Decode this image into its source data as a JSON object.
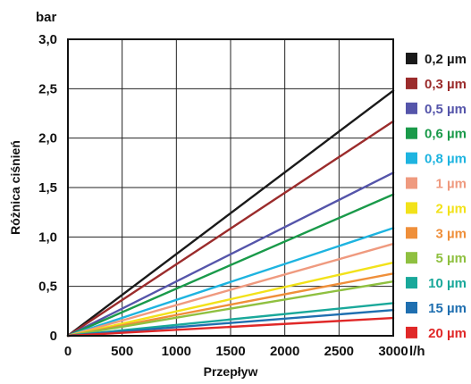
{
  "chart_data": {
    "type": "line",
    "xlabel": "Przepływ",
    "ylabel": "Różnica ciśnień",
    "x_unit": "l/h",
    "y_unit": "bar",
    "xlim": [
      0,
      3000
    ],
    "ylim": [
      0,
      3.0
    ],
    "x_ticks": [
      "0",
      "500",
      "1000",
      "1500",
      "2000",
      "2500",
      "3000"
    ],
    "y_ticks": [
      "0",
      "0,5",
      "1,0",
      "1,5",
      "2,0",
      "2,5",
      "3,0"
    ],
    "grid": true,
    "legend_position": "right",
    "series": [
      {
        "name": "0,2 µm",
        "color": "#1a1a1a",
        "points": [
          [
            0,
            0
          ],
          [
            3000,
            2.48
          ]
        ]
      },
      {
        "name": "0,3 µm",
        "color": "#9b2c2c",
        "points": [
          [
            0,
            0
          ],
          [
            3000,
            2.17
          ]
        ]
      },
      {
        "name": "0,5 µm",
        "color": "#5555aa",
        "points": [
          [
            0,
            0
          ],
          [
            3000,
            1.65
          ]
        ]
      },
      {
        "name": "0,6 µm",
        "color": "#1a9a4a",
        "points": [
          [
            0,
            0
          ],
          [
            3000,
            1.43
          ]
        ]
      },
      {
        "name": "0,8 µm",
        "color": "#1eb4e0",
        "points": [
          [
            0,
            0
          ],
          [
            3000,
            1.09
          ]
        ]
      },
      {
        "name": "1 µm",
        "color": "#ef9a7f",
        "points": [
          [
            0,
            0
          ],
          [
            3000,
            0.93
          ]
        ]
      },
      {
        "name": "2 µm",
        "color": "#f2e21a",
        "points": [
          [
            0,
            0
          ],
          [
            3000,
            0.74
          ]
        ]
      },
      {
        "name": "3 µm",
        "color": "#ef8f3a",
        "points": [
          [
            0,
            0
          ],
          [
            3000,
            0.63
          ]
        ]
      },
      {
        "name": "5 µm",
        "color": "#8fc040",
        "points": [
          [
            0,
            0
          ],
          [
            3000,
            0.55
          ]
        ]
      },
      {
        "name": "10 µm",
        "color": "#19a89a",
        "points": [
          [
            0,
            0
          ],
          [
            3000,
            0.33
          ]
        ]
      },
      {
        "name": "15 µm",
        "color": "#1f6fb0",
        "points": [
          [
            0,
            0
          ],
          [
            3000,
            0.26
          ]
        ]
      },
      {
        "name": "20 µm",
        "color": "#e02828",
        "points": [
          [
            0,
            0
          ],
          [
            3000,
            0.18
          ]
        ]
      }
    ]
  }
}
